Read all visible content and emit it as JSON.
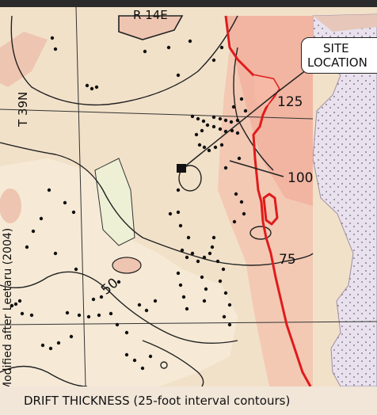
{
  "labels": {
    "range": "R 14E",
    "township": "T 39N",
    "site": [
      "SITE",
      "LOCATION"
    ],
    "attribution": "Modified after Leetaru (2004)",
    "caption": "DRIFT THICKNESS (25-foot interval contours)"
  },
  "contours": {
    "c125": "125",
    "c100": "100",
    "c75": "75",
    "c50": "50"
  },
  "colors": {
    "border": "#e01b1b",
    "background": "#f2dfc8",
    "inset": "#e8e0ef"
  }
}
